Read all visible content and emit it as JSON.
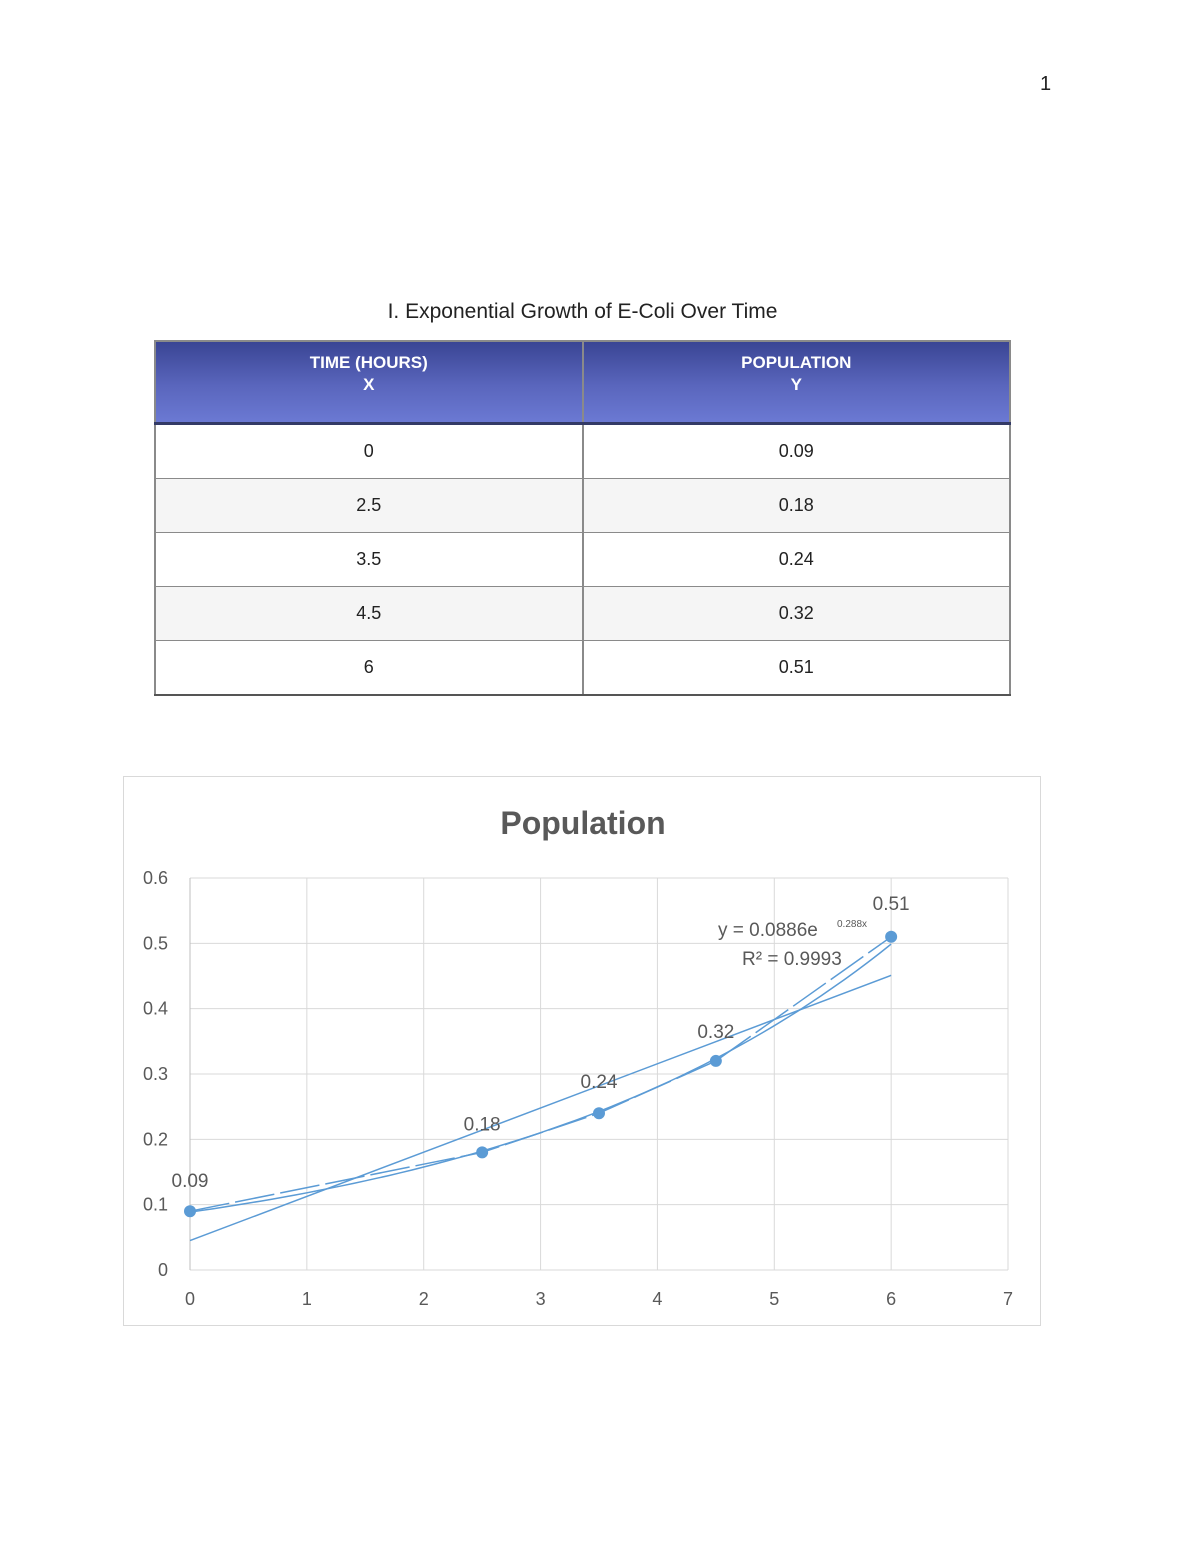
{
  "page": {
    "number": "1"
  },
  "table": {
    "title": "I. Exponential Growth of E-Coli Over Time",
    "headers": [
      {
        "line1": "TIME (HOURS)",
        "line2": "X"
      },
      {
        "line1": "POPULATION",
        "line2": "Y"
      }
    ],
    "rows": [
      {
        "x": "0",
        "y": "0.09"
      },
      {
        "x": "2.5",
        "y": "0.18"
      },
      {
        "x": "3.5",
        "y": "0.24"
      },
      {
        "x": "4.5",
        "y": "0.32"
      },
      {
        "x": "6",
        "y": "0.51"
      }
    ],
    "header_color": "#4a56a8"
  },
  "chart_data": {
    "type": "scatter",
    "title": "Population",
    "xlabel": "",
    "ylabel": "",
    "xlim": [
      0,
      7
    ],
    "ylim": [
      0,
      0.6
    ],
    "x_ticks": [
      "0",
      "1",
      "2",
      "3",
      "4",
      "5",
      "6",
      "7"
    ],
    "y_ticks": [
      "0",
      "0.1",
      "0.2",
      "0.3",
      "0.4",
      "0.5",
      "0.6"
    ],
    "grid": true,
    "legend": "none",
    "series": [
      {
        "name": "Population",
        "x": [
          0,
          2.5,
          3.5,
          4.5,
          6
        ],
        "y": [
          0.09,
          0.18,
          0.24,
          0.32,
          0.51
        ],
        "labels": [
          "0.09",
          "0.18",
          "0.24",
          "0.32",
          "0.51"
        ],
        "color": "#5b9bd5",
        "connected": true
      }
    ],
    "trendlines": [
      {
        "type": "exponential",
        "equation": "y = 0.0886e",
        "exponent": "0.288x",
        "r_squared": "R² = 0.9993",
        "a": 0.0886,
        "b": 0.288
      },
      {
        "type": "linear",
        "start": [
          0,
          0.045
        ],
        "end": [
          6,
          0.451
        ]
      }
    ]
  }
}
